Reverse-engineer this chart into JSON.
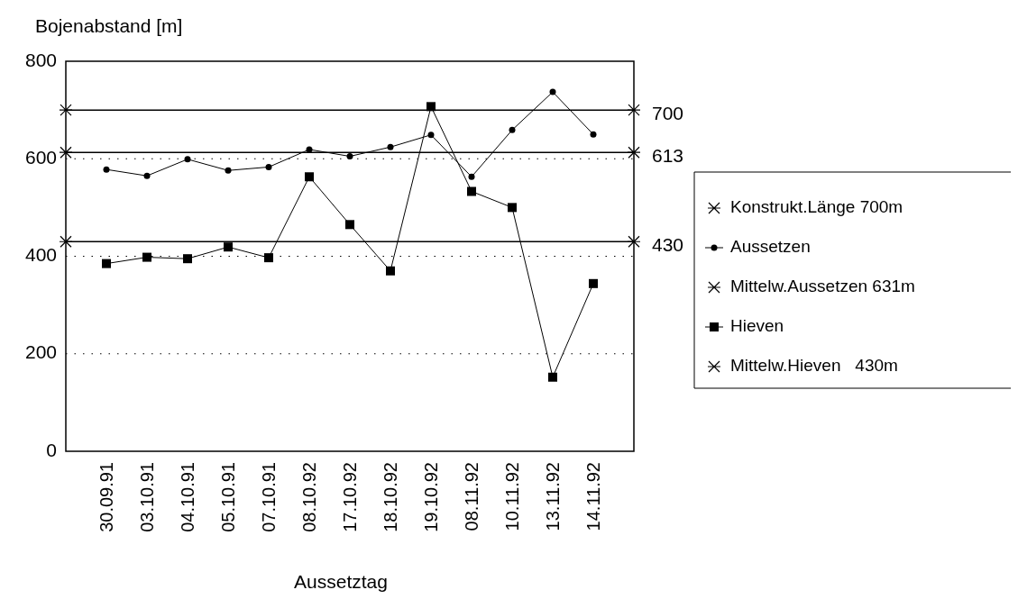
{
  "chart_data": {
    "type": "line",
    "xlabel": "Aussetztag",
    "ylabel": "Bojenabstand [m]",
    "categories": [
      "30.09.91",
      "03.10.91",
      "04.10.91",
      "05.10.91",
      "07.10.91",
      "08.10.92",
      "17.10.92",
      "18.10.92",
      "19.10.92",
      "08.11.92",
      "10.11.92",
      "13.11.92",
      "14.11.92"
    ],
    "series": [
      {
        "name": "Aussetzen",
        "color": "#000000",
        "marker": "circle",
        "values": [
          578,
          565,
          599,
          576,
          583,
          619,
          605,
          624,
          649,
          563,
          659,
          737,
          650
        ]
      },
      {
        "name": "Hieven",
        "color": "#000000",
        "marker": "square",
        "values": [
          385,
          398,
          395,
          419,
          397,
          563,
          465,
          370,
          707,
          533,
          500,
          152,
          344
        ]
      }
    ],
    "ref_lines": [
      {
        "axis": "y",
        "value": 700,
        "label": "Konstrukt.Länge 700m",
        "color": "#000000"
      },
      {
        "axis": "y",
        "value": 613,
        "label": "Mittelw.Aussetzen 631m",
        "color": "#000000"
      },
      {
        "axis": "y",
        "value": 430,
        "label": "Mittelw.Hieven   430m",
        "color": "#000000"
      }
    ],
    "annotations": [
      "700",
      "613",
      "430"
    ],
    "ylim": [
      0,
      800
    ],
    "yticks": [
      0,
      200,
      400,
      600,
      800
    ],
    "grid": "y",
    "legend": "right"
  }
}
